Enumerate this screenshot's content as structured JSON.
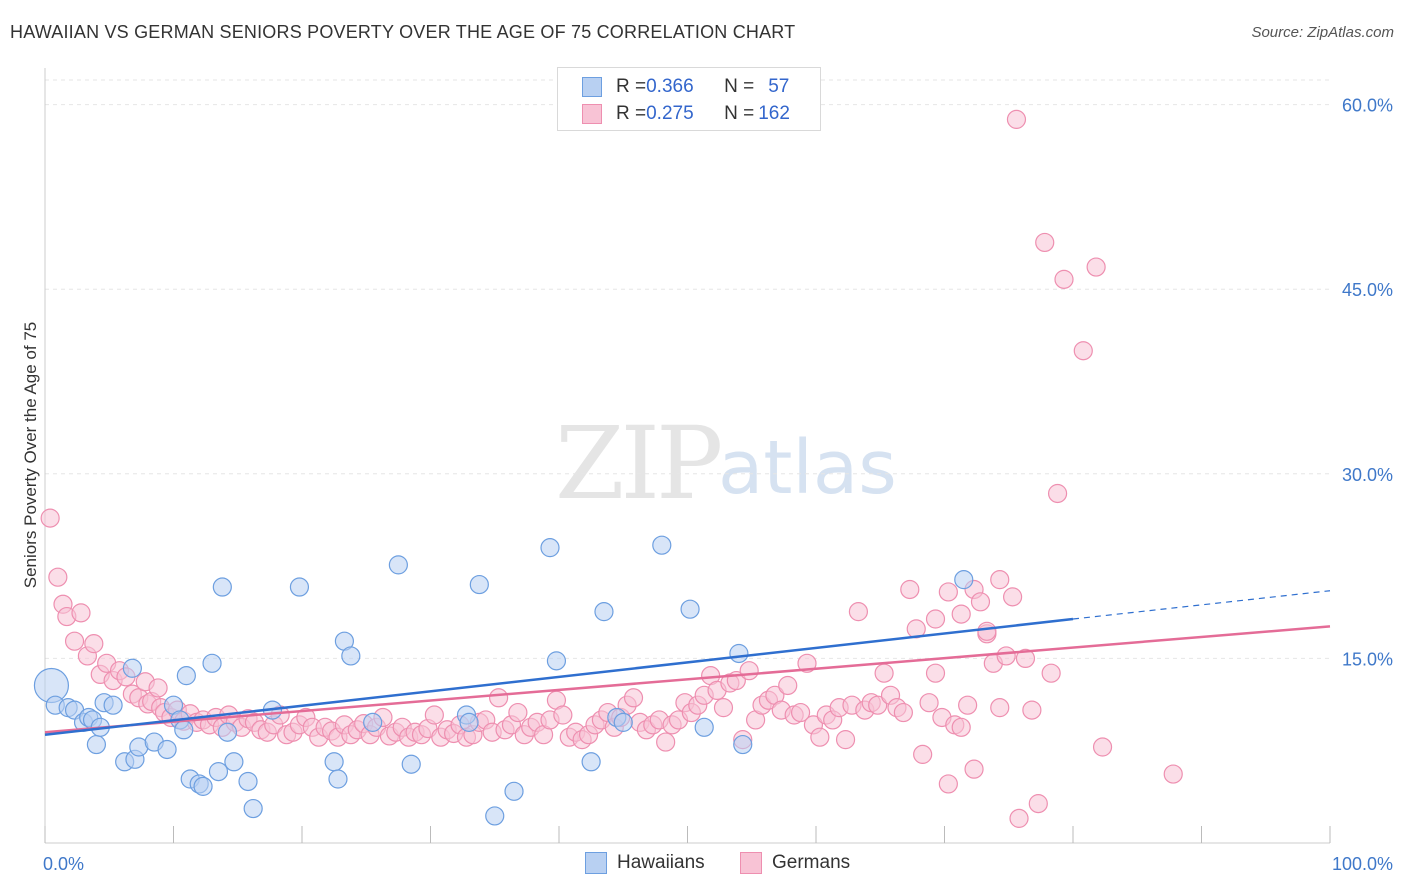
{
  "header": {
    "title": "HAWAIIAN VS GERMAN SENIORS POVERTY OVER THE AGE OF 75 CORRELATION CHART",
    "source": "Source: ZipAtlas.com"
  },
  "watermark": {
    "zip": "ZIP",
    "atlas": "atlas"
  },
  "legend_top": {
    "rows": [
      {
        "r_label": "R = ",
        "r_value": "0.366",
        "n_label": "N = ",
        "n_value": "57",
        "color": "#6d9fe0"
      },
      {
        "r_label": "R = ",
        "r_value": "0.275",
        "n_label": "N = ",
        "n_value": "162",
        "color": "#ee8fb0"
      }
    ]
  },
  "colors": {
    "hawaiians_fill": "#b8d0f2",
    "hawaiians_stroke": "#6d9fe0",
    "hawaiians_line": "#2f6fcf",
    "germans_fill": "#f8c3d5",
    "germans_stroke": "#ee8fb0",
    "germans_line": "#e46c97",
    "tick_label": "#3f78c9",
    "grid": "#e6e6e6"
  },
  "chart_data": {
    "type": "scatter",
    "title": "HAWAIIAN VS GERMAN SENIORS POVERTY OVER THE AGE OF 75 CORRELATION CHART",
    "xlabel": "",
    "ylabel": "Seniors Poverty Over the Age of 75",
    "xlim": [
      0,
      100
    ],
    "ylim": [
      0,
      62
    ],
    "x_tick_labels": [
      "0.0%",
      "100.0%"
    ],
    "y_ticks": [
      15,
      30,
      45,
      60
    ],
    "y_tick_labels": [
      "15.0%",
      "30.0%",
      "45.0%",
      "60.0%"
    ],
    "grid": true,
    "legend_placement": "bottom",
    "series": [
      {
        "name": "Hawaiians",
        "trend": {
          "x0": 0,
          "y0": 8.8,
          "x1": 80,
          "y1": 18.2,
          "dashed_to_x": 100,
          "dashed_to_y": 20.5
        },
        "points": [
          [
            0.5,
            12.8,
            3
          ],
          [
            0.8,
            11.2,
            1
          ],
          [
            1.8,
            11.0,
            1
          ],
          [
            2.3,
            10.8,
            1
          ],
          [
            3.0,
            9.8,
            1
          ],
          [
            3.4,
            10.2,
            1
          ],
          [
            3.7,
            10.0,
            1
          ],
          [
            4.0,
            8.0,
            1
          ],
          [
            4.3,
            9.4,
            1
          ],
          [
            4.6,
            11.4,
            1
          ],
          [
            5.3,
            11.2,
            1
          ],
          [
            6.2,
            6.6,
            1
          ],
          [
            6.8,
            14.2,
            1
          ],
          [
            7.0,
            6.8,
            1
          ],
          [
            7.3,
            7.8,
            1
          ],
          [
            8.5,
            8.2,
            1
          ],
          [
            9.5,
            7.6,
            1
          ],
          [
            10.0,
            11.2,
            1
          ],
          [
            10.5,
            10.0,
            1
          ],
          [
            10.8,
            9.2,
            1
          ],
          [
            11.0,
            13.6,
            1
          ],
          [
            11.3,
            5.2,
            1
          ],
          [
            12.0,
            4.8,
            1
          ],
          [
            12.3,
            4.6,
            1
          ],
          [
            13.0,
            14.6,
            1
          ],
          [
            13.5,
            5.8,
            1
          ],
          [
            13.8,
            20.8,
            1
          ],
          [
            14.2,
            9.0,
            1
          ],
          [
            14.7,
            6.6,
            1
          ],
          [
            15.8,
            5.0,
            1
          ],
          [
            16.2,
            2.8,
            1
          ],
          [
            17.7,
            10.8,
            1
          ],
          [
            19.8,
            20.8,
            1
          ],
          [
            22.5,
            6.6,
            1
          ],
          [
            22.8,
            5.2,
            1
          ],
          [
            23.3,
            16.4,
            1
          ],
          [
            23.8,
            15.2,
            1
          ],
          [
            25.5,
            9.8,
            1
          ],
          [
            27.5,
            22.6,
            1
          ],
          [
            28.5,
            6.4,
            1
          ],
          [
            32.8,
            10.4,
            1
          ],
          [
            33.0,
            9.8,
            1
          ],
          [
            33.8,
            21.0,
            1
          ],
          [
            35.0,
            2.2,
            1
          ],
          [
            36.5,
            4.2,
            1
          ],
          [
            39.3,
            24.0,
            1
          ],
          [
            39.8,
            14.8,
            1
          ],
          [
            42.5,
            6.6,
            1
          ],
          [
            43.5,
            18.8,
            1
          ],
          [
            44.5,
            10.2,
            1
          ],
          [
            45.0,
            9.8,
            1
          ],
          [
            48.0,
            24.2,
            1
          ],
          [
            50.2,
            19.0,
            1
          ],
          [
            51.3,
            9.4,
            1
          ],
          [
            54.0,
            15.4,
            1
          ],
          [
            54.3,
            8.0,
            1
          ],
          [
            71.5,
            21.4,
            1
          ]
        ]
      },
      {
        "name": "Germans",
        "trend": {
          "x0": 0,
          "y0": 9.0,
          "x1": 100,
          "y1": 17.6
        },
        "points": [
          [
            0.4,
            26.4
          ],
          [
            1.0,
            21.6
          ],
          [
            1.4,
            19.4
          ],
          [
            1.7,
            18.4
          ],
          [
            2.3,
            16.4
          ],
          [
            2.8,
            18.7
          ],
          [
            3.3,
            15.2
          ],
          [
            3.8,
            16.2
          ],
          [
            4.3,
            13.7
          ],
          [
            4.8,
            14.6
          ],
          [
            5.3,
            13.2
          ],
          [
            5.8,
            14.0
          ],
          [
            6.3,
            13.5
          ],
          [
            6.8,
            12.1
          ],
          [
            7.3,
            11.8
          ],
          [
            7.8,
            13.1
          ],
          [
            8.0,
            11.3
          ],
          [
            8.3,
            11.5
          ],
          [
            8.8,
            12.6
          ],
          [
            9.0,
            11.0
          ],
          [
            9.3,
            10.6
          ],
          [
            9.8,
            10.2
          ],
          [
            10.3,
            10.8
          ],
          [
            10.8,
            9.9
          ],
          [
            11.3,
            10.5
          ],
          [
            11.8,
            9.8
          ],
          [
            12.3,
            10.0
          ],
          [
            12.8,
            9.6
          ],
          [
            13.3,
            10.2
          ],
          [
            13.8,
            9.4
          ],
          [
            14.3,
            10.4
          ],
          [
            14.8,
            9.8
          ],
          [
            15.3,
            9.4
          ],
          [
            15.8,
            10.1
          ],
          [
            16.3,
            9.8
          ],
          [
            16.8,
            9.2
          ],
          [
            17.3,
            9.0
          ],
          [
            17.8,
            9.6
          ],
          [
            18.3,
            10.4
          ],
          [
            18.8,
            8.8
          ],
          [
            19.3,
            9.0
          ],
          [
            19.8,
            9.6
          ],
          [
            20.3,
            10.2
          ],
          [
            20.8,
            9.4
          ],
          [
            21.3,
            8.6
          ],
          [
            21.8,
            9.4
          ],
          [
            22.3,
            9.1
          ],
          [
            22.8,
            8.6
          ],
          [
            23.3,
            9.6
          ],
          [
            23.8,
            8.8
          ],
          [
            24.3,
            9.2
          ],
          [
            24.8,
            9.7
          ],
          [
            25.3,
            8.8
          ],
          [
            25.8,
            9.4
          ],
          [
            26.3,
            10.2
          ],
          [
            26.8,
            8.7
          ],
          [
            27.3,
            9.0
          ],
          [
            27.8,
            9.4
          ],
          [
            28.3,
            8.6
          ],
          [
            28.8,
            9.0
          ],
          [
            29.3,
            8.8
          ],
          [
            29.8,
            9.3
          ],
          [
            30.3,
            10.4
          ],
          [
            30.8,
            8.6
          ],
          [
            31.3,
            9.2
          ],
          [
            31.8,
            8.9
          ],
          [
            32.3,
            9.6
          ],
          [
            32.8,
            8.6
          ],
          [
            33.3,
            8.8
          ],
          [
            33.8,
            9.8
          ],
          [
            34.3,
            10.0
          ],
          [
            34.8,
            9.0
          ],
          [
            35.3,
            11.8
          ],
          [
            35.8,
            9.2
          ],
          [
            36.3,
            9.6
          ],
          [
            36.8,
            10.6
          ],
          [
            37.3,
            8.8
          ],
          [
            37.8,
            9.4
          ],
          [
            38.3,
            9.8
          ],
          [
            38.8,
            8.8
          ],
          [
            39.3,
            10.0
          ],
          [
            39.8,
            11.6
          ],
          [
            40.3,
            10.4
          ],
          [
            40.8,
            8.6
          ],
          [
            41.3,
            9.0
          ],
          [
            41.8,
            8.4
          ],
          [
            42.3,
            8.8
          ],
          [
            42.8,
            9.6
          ],
          [
            43.3,
            10.0
          ],
          [
            43.8,
            10.6
          ],
          [
            44.3,
            9.4
          ],
          [
            44.8,
            10.2
          ],
          [
            45.3,
            11.2
          ],
          [
            45.8,
            11.8
          ],
          [
            46.3,
            9.8
          ],
          [
            46.8,
            9.2
          ],
          [
            47.3,
            9.6
          ],
          [
            47.8,
            10.0
          ],
          [
            48.3,
            8.2
          ],
          [
            48.8,
            9.6
          ],
          [
            49.3,
            10.0
          ],
          [
            49.8,
            11.4
          ],
          [
            50.3,
            10.6
          ],
          [
            50.8,
            11.2
          ],
          [
            51.3,
            12.0
          ],
          [
            51.8,
            13.6
          ],
          [
            52.3,
            12.4
          ],
          [
            52.8,
            11.0
          ],
          [
            53.3,
            13.0
          ],
          [
            53.8,
            13.2
          ],
          [
            54.3,
            8.4
          ],
          [
            54.8,
            14.0
          ],
          [
            55.3,
            10.0
          ],
          [
            55.8,
            11.2
          ],
          [
            56.3,
            11.6
          ],
          [
            56.8,
            12.0
          ],
          [
            57.3,
            10.8
          ],
          [
            57.8,
            12.8
          ],
          [
            58.3,
            10.4
          ],
          [
            58.8,
            10.6
          ],
          [
            59.3,
            14.6
          ],
          [
            59.8,
            9.6
          ],
          [
            60.3,
            8.6
          ],
          [
            60.8,
            10.4
          ],
          [
            61.3,
            10.0
          ],
          [
            61.8,
            11.0
          ],
          [
            62.3,
            8.4
          ],
          [
            62.8,
            11.2
          ],
          [
            63.3,
            18.8
          ],
          [
            63.8,
            10.8
          ],
          [
            64.3,
            11.4
          ],
          [
            64.8,
            11.2
          ],
          [
            65.3,
            13.8
          ],
          [
            65.8,
            12.0
          ],
          [
            66.3,
            11.0
          ],
          [
            66.8,
            10.6
          ],
          [
            67.3,
            20.6
          ],
          [
            67.8,
            17.4
          ],
          [
            68.3,
            7.2
          ],
          [
            68.8,
            11.4
          ],
          [
            69.3,
            18.2
          ],
          [
            69.8,
            10.2
          ],
          [
            70.3,
            20.4
          ],
          [
            70.8,
            9.6
          ],
          [
            71.3,
            18.6
          ],
          [
            71.8,
            11.2
          ],
          [
            72.3,
            20.6
          ],
          [
            72.8,
            19.6
          ],
          [
            73.3,
            17.0
          ],
          [
            73.8,
            14.6
          ],
          [
            74.3,
            21.4
          ],
          [
            74.8,
            15.2
          ],
          [
            75.3,
            20.0
          ],
          [
            75.6,
            58.8
          ],
          [
            76.3,
            15.0
          ],
          [
            76.8,
            10.8
          ],
          [
            77.3,
            3.2
          ],
          [
            77.8,
            48.8
          ],
          [
            78.3,
            13.8
          ],
          [
            78.8,
            28.4
          ],
          [
            79.3,
            45.8
          ],
          [
            80.8,
            40.0
          ],
          [
            81.8,
            46.8
          ],
          [
            82.3,
            7.8
          ],
          [
            87.8,
            5.6
          ],
          [
            75.8,
            2.0
          ],
          [
            74.3,
            11.0
          ],
          [
            73.3,
            17.2
          ],
          [
            72.3,
            6.0
          ],
          [
            71.3,
            9.4
          ],
          [
            70.3,
            4.8
          ],
          [
            69.3,
            13.8
          ]
        ]
      }
    ]
  },
  "legend_bottom": {
    "items": [
      {
        "label": "Hawaiians"
      },
      {
        "label": "Germans"
      }
    ]
  }
}
